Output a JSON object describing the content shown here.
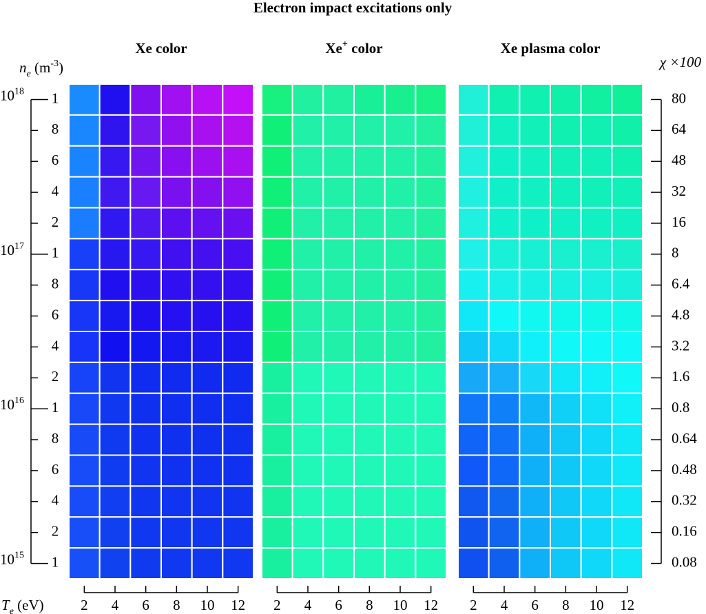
{
  "chart_data": {
    "type": "color-grid",
    "title": "Electron impact excitations only",
    "panels": [
      {
        "title": [
          "Xe",
          " color"
        ],
        "colors": [
          [
            "#1a8aff",
            "#2010f0",
            "#8010f0",
            "#a010f0",
            "#b810f4",
            "#c410f8"
          ],
          [
            "#1a86ff",
            "#3014f0",
            "#7818f0",
            "#9010f0",
            "#a810f0",
            "#b410f0"
          ],
          [
            "#1a84ff",
            "#3818f0",
            "#7014f0",
            "#8810f0",
            "#9c10f0",
            "#a810f0"
          ],
          [
            "#1a80ff",
            "#4018f0",
            "#6818f0",
            "#7810f0",
            "#8410f0",
            "#9010f0"
          ],
          [
            "#1a7cff",
            "#3018f0",
            "#5018f0",
            "#5c10f0",
            "#6410f0",
            "#6a10f0"
          ],
          [
            "#1840f8",
            "#2818f0",
            "#3818f0",
            "#4010f0",
            "#4410f0",
            "#4810f0"
          ],
          [
            "#1838f8",
            "#2010f0",
            "#2c10f0",
            "#3010f0",
            "#3410f0",
            "#3410f0"
          ],
          [
            "#1836f8",
            "#1818f0",
            "#2010f0",
            "#2410f0",
            "#2610f0",
            "#2810f0"
          ],
          [
            "#1834f8",
            "#1010f0",
            "#1418f0",
            "#1818f0",
            "#1c18f0",
            "#1c18f0"
          ],
          [
            "#1844f8",
            "#1034f0",
            "#102cf0",
            "#102af0",
            "#102af0",
            "#102af0"
          ],
          [
            "#1848f8",
            "#1038f0",
            "#1030f0",
            "#102ef0",
            "#102ef0",
            "#102ef0"
          ],
          [
            "#184af8",
            "#103af0",
            "#1032f0",
            "#1030f0",
            "#1030f0",
            "#1030f0"
          ],
          [
            "#184cf8",
            "#103cf0",
            "#1034f0",
            "#1032f0",
            "#1032f0",
            "#1032f0"
          ],
          [
            "#184cf8",
            "#103ef0",
            "#1036f0",
            "#1034f0",
            "#1034f0",
            "#1034f0"
          ],
          [
            "#184ef8",
            "#1040f0",
            "#1038f0",
            "#1036f0",
            "#1036f0",
            "#1036f0"
          ],
          [
            "#1850f8",
            "#1042f0",
            "#103af0",
            "#1038f0",
            "#1038f0",
            "#1038f0"
          ]
        ]
      },
      {
        "title": [
          "Xe",
          "+",
          " color"
        ],
        "colors": [
          [
            "#18f080",
            "#20f0a0",
            "#20f0a0",
            "#18f098",
            "#18f090",
            "#18f088"
          ],
          [
            "#10f078",
            "#20f0a8",
            "#20f0a8",
            "#20f0a8",
            "#20f0a8",
            "#20f0a0"
          ],
          [
            "#10f078",
            "#20f0a8",
            "#20f0a8",
            "#20f0a8",
            "#20f0a8",
            "#20f0a0"
          ],
          [
            "#10f078",
            "#20f0a8",
            "#20f0a8",
            "#20f0a8",
            "#20f0a8",
            "#20f0a0"
          ],
          [
            "#10f078",
            "#20f0a8",
            "#20f0a8",
            "#20f0a8",
            "#20f0a8",
            "#20f0a0"
          ],
          [
            "#10f078",
            "#20f0a8",
            "#20f0a8",
            "#20f0a8",
            "#20f0a8",
            "#20f0a0"
          ],
          [
            "#10f078",
            "#20f0a8",
            "#20f0a8",
            "#20f0a8",
            "#20f0a8",
            "#20f0a0"
          ],
          [
            "#10f078",
            "#20f0a8",
            "#20f0a8",
            "#20f0a8",
            "#20f0a8",
            "#20f0a0"
          ],
          [
            "#10f078",
            "#20f0a8",
            "#20f0a8",
            "#20f0a8",
            "#20f0a8",
            "#20f0a0"
          ],
          [
            "#18f0a0",
            "#20f8b8",
            "#20f8b8",
            "#20f8b8",
            "#20f8b8",
            "#20f8b8"
          ],
          [
            "#18f0a0",
            "#20f8b8",
            "#20f8b8",
            "#20f8b8",
            "#20f8b8",
            "#20f8b8"
          ],
          [
            "#18f0a0",
            "#20f8b8",
            "#20f8b8",
            "#20f8b8",
            "#20f8b8",
            "#20f8b8"
          ],
          [
            "#18f0a0",
            "#20f8b8",
            "#20f8b8",
            "#20f8b8",
            "#20f8b8",
            "#20f8b8"
          ],
          [
            "#18f0a0",
            "#20f8b8",
            "#20f8b8",
            "#20f8b8",
            "#20f8b8",
            "#20f8b8"
          ],
          [
            "#18f0a0",
            "#20f8b8",
            "#20f8b8",
            "#20f8b8",
            "#20f8b8",
            "#20f8b8"
          ],
          [
            "#18f0a0",
            "#20f8b8",
            "#20f8b8",
            "#20f8b8",
            "#20f8b8",
            "#20f8b8"
          ]
        ]
      },
      {
        "title": [
          "Xe plasma color"
        ],
        "colors": [
          [
            "#20f0d8",
            "#10f0b0",
            "#10f0b0",
            "#10f0a8",
            "#10f0a0",
            "#10f098"
          ],
          [
            "#20f0d8",
            "#10f0c0",
            "#10f0b8",
            "#10f0b0",
            "#10f0b0",
            "#10f0a8"
          ],
          [
            "#20f0dc",
            "#10f0c8",
            "#10f0c0",
            "#10f0b8",
            "#10f0b8",
            "#10f0b0"
          ],
          [
            "#20f0e0",
            "#10f0c8",
            "#10f0c0",
            "#10f0bc",
            "#10f0b8",
            "#10f0b8"
          ],
          [
            "#20f0e0",
            "#10f0cc",
            "#10f0c8",
            "#10f0c4",
            "#10f0c0",
            "#10f0c0"
          ],
          [
            "#20f0e8",
            "#18f0d8",
            "#18f0d4",
            "#18f0d0",
            "#18f0d0",
            "#18f0cc"
          ],
          [
            "#18f0f0",
            "#18f0e8",
            "#18f0e4",
            "#18f0e0",
            "#18f0e0",
            "#18f0dc"
          ],
          [
            "#10e8f8",
            "#10f8f8",
            "#10f8f0",
            "#10f8ec",
            "#10f8e8",
            "#10f8e8"
          ],
          [
            "#10c8f8",
            "#10d8f8",
            "#10f0f8",
            "#10f8f8",
            "#10f8f8",
            "#10f8f8"
          ],
          [
            "#18a8f8",
            "#18b0f8",
            "#18d8f8",
            "#10e8f8",
            "#10f0f8",
            "#10f8f8"
          ],
          [
            "#1078f8",
            "#1080f8",
            "#10b8f8",
            "#10d0f8",
            "#10e0f8",
            "#10f0f8"
          ],
          [
            "#1064f8",
            "#1070f8",
            "#10b0f8",
            "#10c8f8",
            "#10d8f8",
            "#10e8f8"
          ],
          [
            "#1058f8",
            "#1068f8",
            "#10b0f8",
            "#10c8f8",
            "#10d8f8",
            "#10e8f8"
          ],
          [
            "#1058f0",
            "#1068f0",
            "#10b0f8",
            "#10c8f8",
            "#10d8f8",
            "#10e8f8"
          ],
          [
            "#1054f0",
            "#1064f0",
            "#10b0f8",
            "#10c8f8",
            "#10d8f8",
            "#10e8f8"
          ],
          [
            "#1050f0",
            "#1060f0",
            "#10b0f8",
            "#10c8f8",
            "#10d8f8",
            "#10e8f8"
          ]
        ]
      }
    ],
    "te_label": [
      "T",
      "e",
      " (eV)"
    ],
    "te_ticks": [
      2,
      4,
      6,
      8,
      10,
      12
    ],
    "ne_label": [
      "n",
      "e",
      " (m",
      "-3",
      ")"
    ],
    "ne_row_labels": [
      1,
      8,
      6,
      4,
      2,
      1,
      8,
      6,
      4,
      2,
      1,
      8,
      6,
      4,
      2,
      1
    ],
    "ne_decades": [
      [
        "10",
        "18"
      ],
      [
        "10",
        "17"
      ],
      [
        "10",
        "16"
      ],
      [
        "10",
        "15"
      ]
    ],
    "chi_label": "χ ×100",
    "chi_labels": [
      80,
      64,
      48,
      32,
      16,
      8,
      6.4,
      4.8,
      3.2,
      1.6,
      0.8,
      0.64,
      0.48,
      0.32,
      0.16,
      0.08
    ]
  }
}
